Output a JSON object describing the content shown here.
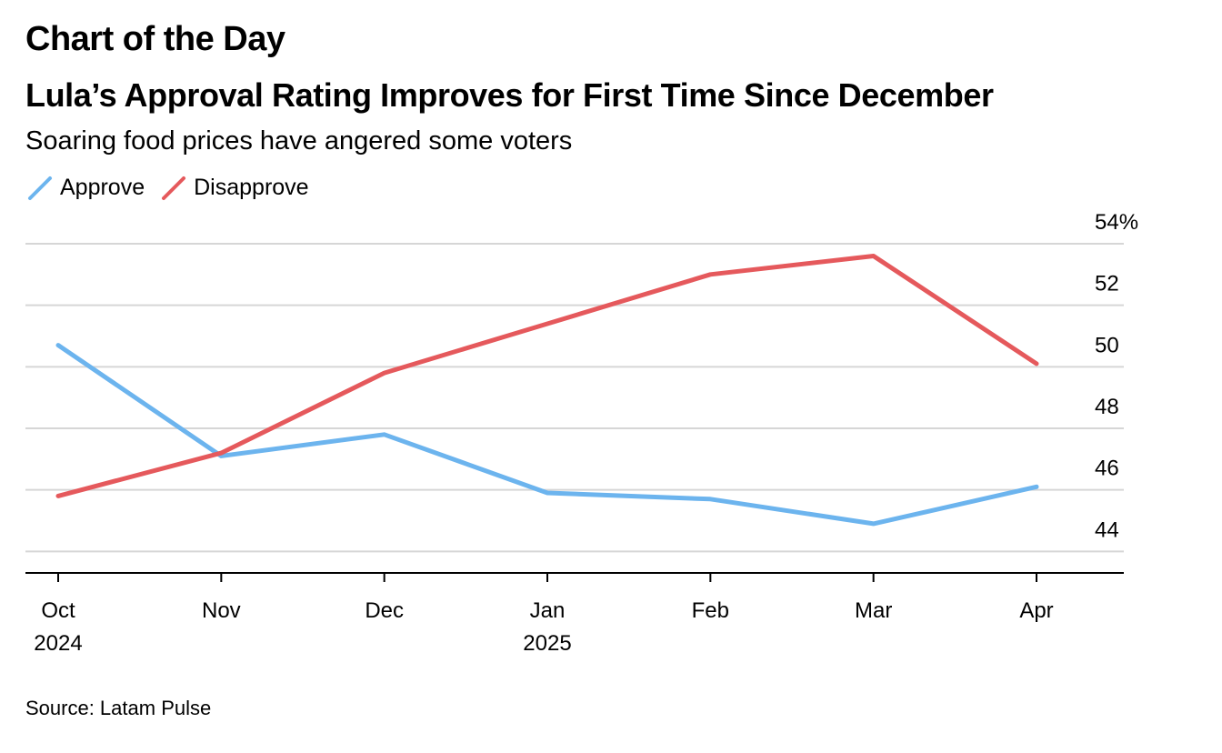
{
  "header": {
    "kicker": "Chart of the Day",
    "title": "Lula’s Approval Rating Improves for First Time Since December",
    "subtitle": "Soaring food prices have angered some voters"
  },
  "legend": [
    {
      "label": "Approve",
      "color": "#6cb4ee"
    },
    {
      "label": "Disapprove",
      "color": "#e5595c"
    }
  ],
  "source": "Source: Latam Pulse",
  "chart_data": {
    "type": "line",
    "x": [
      "Oct 2024",
      "Nov 2024",
      "Dec 2024",
      "Jan 2025",
      "Feb 2025",
      "Mar 2025",
      "Apr 2025"
    ],
    "x_tick_labels": [
      {
        "month": "Oct",
        "year": "2024"
      },
      {
        "month": "Nov",
        "year": ""
      },
      {
        "month": "Dec",
        "year": ""
      },
      {
        "month": "Jan",
        "year": "2025"
      },
      {
        "month": "Feb",
        "year": ""
      },
      {
        "month": "Mar",
        "year": ""
      },
      {
        "month": "Apr",
        "year": ""
      }
    ],
    "series": [
      {
        "name": "Approve",
        "color": "#6cb4ee",
        "values": [
          50.7,
          47.1,
          47.8,
          45.9,
          45.7,
          44.9,
          46.1
        ]
      },
      {
        "name": "Disapprove",
        "color": "#e5595c",
        "values": [
          45.8,
          47.2,
          49.8,
          51.4,
          53.0,
          53.6,
          50.1
        ]
      }
    ],
    "ylim": [
      43.3,
      54.0
    ],
    "y_ticks": [
      44,
      46,
      48,
      50,
      52,
      54
    ],
    "y_tick_labels": [
      "44",
      "46",
      "48",
      "50",
      "52",
      "54%"
    ],
    "y_axis_side": "right",
    "grid": true,
    "legend_position": "top-left"
  }
}
